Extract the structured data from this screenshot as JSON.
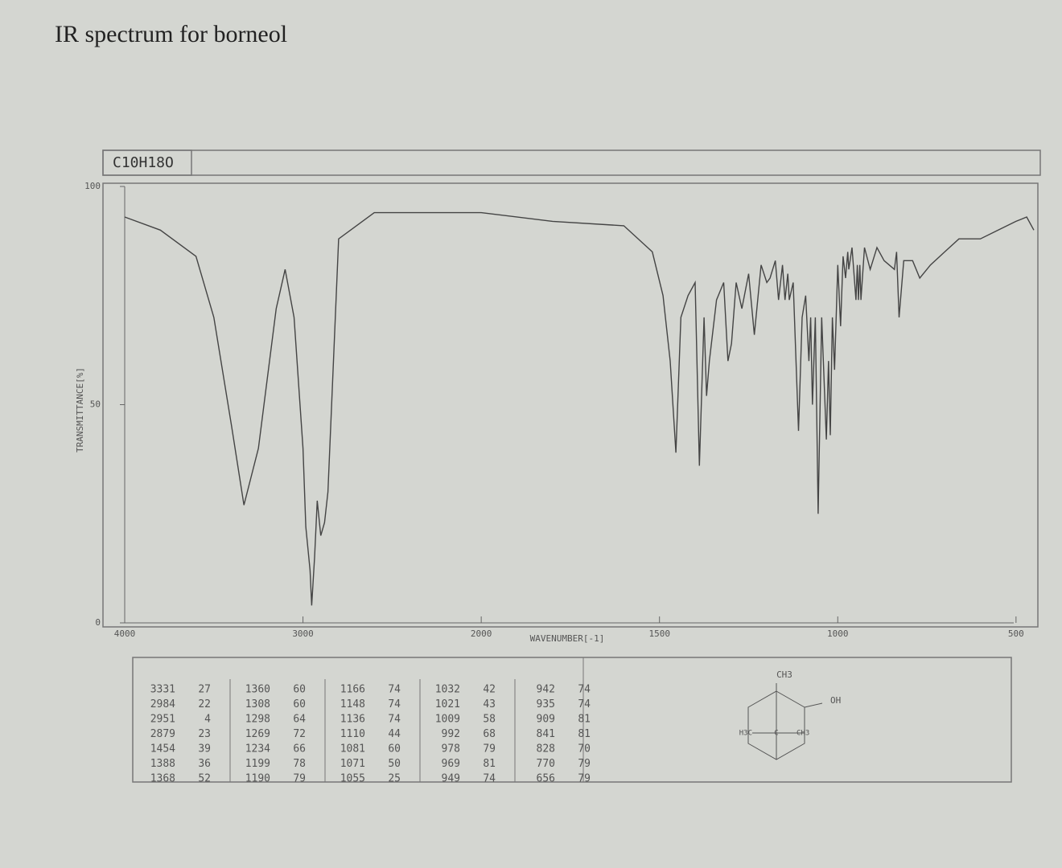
{
  "chart_data": {
    "type": "line",
    "title": "IR spectrum for borneol",
    "formula": "C10H18O",
    "x_label": "WAVENUMBER[-1]",
    "y_label": "TRANSMITTANCE[%]",
    "xlim": [
      4000,
      450
    ],
    "xscale_break": 2000,
    "xticks": [
      4000,
      3000,
      2000,
      1500,
      1000,
      500
    ],
    "ylim": [
      0,
      100
    ],
    "yticks": [
      0,
      50,
      100
    ],
    "series": [
      {
        "color": "#444444",
        "x": [
          4000,
          3800,
          3600,
          3500,
          3400,
          3331,
          3250,
          3150,
          3100,
          3050,
          3000,
          2984,
          2960,
          2951,
          2935,
          2920,
          2900,
          2879,
          2860,
          2800,
          2700,
          2600,
          2200,
          2000,
          1800,
          1600,
          1520,
          1490,
          1470,
          1454,
          1440,
          1420,
          1400,
          1388,
          1375,
          1368,
          1360,
          1340,
          1320,
          1308,
          1298,
          1285,
          1269,
          1250,
          1234,
          1215,
          1199,
          1190,
          1175,
          1166,
          1155,
          1148,
          1140,
          1136,
          1125,
          1110,
          1100,
          1090,
          1081,
          1076,
          1071,
          1063,
          1055,
          1045,
          1032,
          1026,
          1021,
          1015,
          1009,
          1000,
          992,
          985,
          978,
          972,
          969,
          960,
          949,
          945,
          942,
          938,
          935,
          925,
          909,
          890,
          870,
          841,
          835,
          828,
          815,
          790,
          770,
          740,
          700,
          660,
          600,
          550,
          500,
          470,
          450
        ],
        "values": [
          93,
          90,
          84,
          70,
          45,
          27,
          40,
          72,
          81,
          70,
          40,
          22,
          12,
          4,
          15,
          28,
          20,
          23,
          30,
          88,
          91,
          94,
          94,
          94,
          92,
          91,
          85,
          75,
          60,
          39,
          70,
          75,
          78,
          36,
          70,
          52,
          60,
          74,
          78,
          60,
          64,
          78,
          72,
          80,
          66,
          82,
          78,
          79,
          83,
          74,
          82,
          74,
          80,
          74,
          78,
          44,
          70,
          75,
          60,
          70,
          50,
          70,
          25,
          70,
          42,
          60,
          43,
          70,
          58,
          82,
          68,
          84,
          79,
          85,
          81,
          86,
          74,
          82,
          74,
          82,
          74,
          86,
          81,
          86,
          83,
          81,
          85,
          70,
          83,
          83,
          79,
          82,
          85,
          88,
          88,
          90,
          92,
          93,
          90
        ]
      }
    ]
  },
  "peak_table": [
    {
      "wavenumber": [
        3331,
        2984,
        2951,
        2879,
        1454,
        1388,
        1368
      ],
      "transmittance": [
        27,
        22,
        4,
        23,
        39,
        36,
        52
      ]
    },
    {
      "wavenumber": [
        1360,
        1308,
        1298,
        1269,
        1234,
        1199,
        1190
      ],
      "transmittance": [
        60,
        60,
        64,
        72,
        66,
        78,
        79
      ]
    },
    {
      "wavenumber": [
        1166,
        1148,
        1136,
        1110,
        1081,
        1071,
        1055
      ],
      "transmittance": [
        74,
        74,
        74,
        44,
        60,
        50,
        25
      ]
    },
    {
      "wavenumber": [
        1032,
        1021,
        1009,
        992,
        978,
        969,
        949
      ],
      "transmittance": [
        42,
        43,
        58,
        68,
        79,
        81,
        74
      ]
    },
    {
      "wavenumber": [
        942,
        935,
        909,
        841,
        828,
        770,
        656
      ],
      "transmittance": [
        74,
        74,
        81,
        81,
        70,
        79,
        79
      ]
    }
  ],
  "structure": {
    "labels": [
      "CH3",
      "OH",
      "H3C",
      "C",
      "CH3"
    ]
  }
}
